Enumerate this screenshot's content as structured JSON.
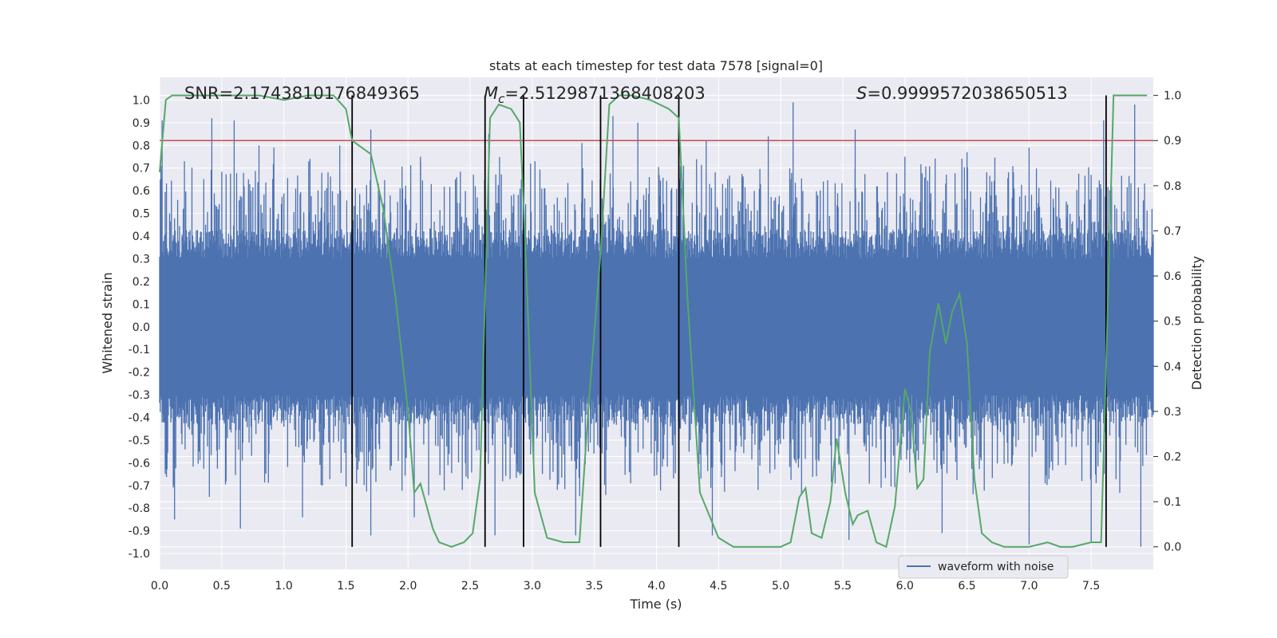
{
  "chart_data": {
    "type": "line",
    "title": "stats at each timestep for test data 7578 [signal=0]",
    "xlabel": "Time (s)",
    "ylabel_left": "Whitened strain",
    "ylabel_right": "Detection probability",
    "xlim": [
      0.0,
      8.0
    ],
    "ylim_left": [
      -1.07,
      1.1
    ],
    "ylim_right": [
      -0.05,
      1.04
    ],
    "grid": true,
    "x_ticks": [
      "0.0",
      "0.5",
      "1.0",
      "1.5",
      "2.0",
      "2.5",
      "3.0",
      "3.5",
      "4.0",
      "4.5",
      "5.0",
      "5.5",
      "6.0",
      "6.5",
      "7.0",
      "7.5"
    ],
    "y_ticks_left": [
      "1.0",
      "0.9",
      "0.8",
      "0.7",
      "0.6",
      "0.5",
      "0.4",
      "0.3",
      "0.2",
      "0.1",
      "0.0",
      "-0.1",
      "-0.2",
      "-0.3",
      "-0.4",
      "-0.5",
      "-0.6",
      "-0.7",
      "-0.8",
      "-0.9",
      "-1.0"
    ],
    "y_ticks_right": [
      "1.0",
      "0.9",
      "0.8",
      "0.7",
      "0.6",
      "0.5",
      "0.4",
      "0.3",
      "0.2",
      "0.1",
      "0.0"
    ],
    "annotations": {
      "snr": "SNR=2.1743810176849365",
      "mc_symbol": "M",
      "mc_subscript": "c",
      "mc_value": "=2.5129871368408203",
      "s_symbol": "S",
      "s_value": "=0.9999572038650513"
    },
    "threshold": {
      "value": 0.9,
      "axis": "right",
      "color": "#c44e52"
    },
    "vertical_lines": [
      1.55,
      2.62,
      2.93,
      3.55,
      4.18,
      7.62
    ],
    "vertical_line_range_right": [
      0.0,
      1.0
    ],
    "series": [
      {
        "name": "waveform with noise",
        "axis": "left",
        "color": "#4c72b0",
        "description_level": "whitened strain noise, core amplitude about ±0.4 with spikes up to about ±0.95",
        "peak_spikes": [
          [
            0.02,
            0.91
          ],
          [
            0.2,
            0.73
          ],
          [
            0.42,
            0.92
          ],
          [
            0.6,
            0.91
          ],
          [
            0.8,
            0.8
          ],
          [
            0.92,
            0.79
          ],
          [
            1.2,
            0.73
          ],
          [
            1.45,
            0.8
          ],
          [
            1.7,
            0.87
          ],
          [
            2.1,
            0.75
          ],
          [
            2.65,
            0.85
          ],
          [
            2.93,
            0.87
          ],
          [
            3.4,
            0.81
          ],
          [
            3.65,
            0.93
          ],
          [
            3.85,
            0.9
          ],
          [
            4.4,
            0.82
          ],
          [
            4.9,
            0.84
          ],
          [
            5.1,
            0.99
          ],
          [
            5.6,
            0.87
          ],
          [
            6.0,
            0.75
          ],
          [
            6.5,
            0.77
          ],
          [
            7.0,
            0.79
          ],
          [
            7.6,
            0.91
          ],
          [
            7.85,
            0.98
          ]
        ],
        "trough_spikes": [
          [
            0.12,
            -0.85
          ],
          [
            0.4,
            -0.75
          ],
          [
            0.65,
            -0.89
          ],
          [
            1.15,
            -0.84
          ],
          [
            1.7,
            -0.92
          ],
          [
            2.05,
            -0.84
          ],
          [
            2.7,
            -0.92
          ],
          [
            3.35,
            -0.92
          ],
          [
            4.45,
            -0.92
          ],
          [
            5.55,
            -0.94
          ],
          [
            6.3,
            -0.91
          ],
          [
            7.0,
            -0.96
          ],
          [
            7.5,
            -0.95
          ],
          [
            7.9,
            -0.97
          ]
        ]
      },
      {
        "name": "",
        "axis": "right",
        "color": "#55a868",
        "x": [
          0.0,
          0.05,
          0.1,
          0.2,
          0.4,
          0.6,
          0.8,
          1.0,
          1.2,
          1.4,
          1.5,
          1.55,
          1.6,
          1.7,
          1.8,
          1.9,
          2.0,
          2.05,
          2.1,
          2.2,
          2.25,
          2.35,
          2.45,
          2.52,
          2.58,
          2.62,
          2.66,
          2.73,
          2.83,
          2.9,
          2.94,
          3.02,
          3.12,
          3.25,
          3.38,
          3.45,
          3.55,
          3.62,
          3.7,
          3.8,
          3.95,
          4.1,
          4.18,
          4.25,
          4.35,
          4.5,
          4.62,
          4.75,
          5.0,
          5.08,
          5.15,
          5.2,
          5.25,
          5.33,
          5.4,
          5.45,
          5.52,
          5.58,
          5.62,
          5.7,
          5.77,
          5.85,
          5.92,
          6.0,
          6.05,
          6.1,
          6.15,
          6.2,
          6.27,
          6.33,
          6.38,
          6.44,
          6.5,
          6.56,
          6.62,
          6.7,
          6.8,
          7.0,
          7.15,
          7.25,
          7.35,
          7.5,
          7.58,
          7.62,
          7.68,
          7.75,
          7.95
        ],
        "y": [
          0.83,
          0.99,
          1.0,
          1.0,
          1.0,
          1.0,
          1.0,
          0.99,
          1.0,
          1.0,
          0.97,
          0.9,
          0.89,
          0.87,
          0.75,
          0.55,
          0.3,
          0.12,
          0.14,
          0.04,
          0.01,
          0.0,
          0.01,
          0.03,
          0.15,
          0.55,
          0.95,
          0.98,
          0.97,
          0.94,
          0.7,
          0.12,
          0.02,
          0.01,
          0.01,
          0.3,
          0.65,
          0.98,
          1.0,
          1.0,
          0.99,
          0.97,
          0.95,
          0.55,
          0.12,
          0.02,
          0.0,
          0.0,
          0.0,
          0.01,
          0.11,
          0.13,
          0.03,
          0.02,
          0.1,
          0.24,
          0.12,
          0.05,
          0.07,
          0.08,
          0.01,
          0.0,
          0.09,
          0.35,
          0.3,
          0.13,
          0.15,
          0.43,
          0.54,
          0.45,
          0.52,
          0.56,
          0.45,
          0.15,
          0.03,
          0.01,
          0.0,
          0.0,
          0.01,
          0.0,
          0.0,
          0.01,
          0.01,
          0.4,
          1.0,
          1.0,
          1.0
        ]
      }
    ],
    "legend": {
      "placement": "lower-center-right",
      "entries": [
        "waveform with noise"
      ]
    }
  }
}
